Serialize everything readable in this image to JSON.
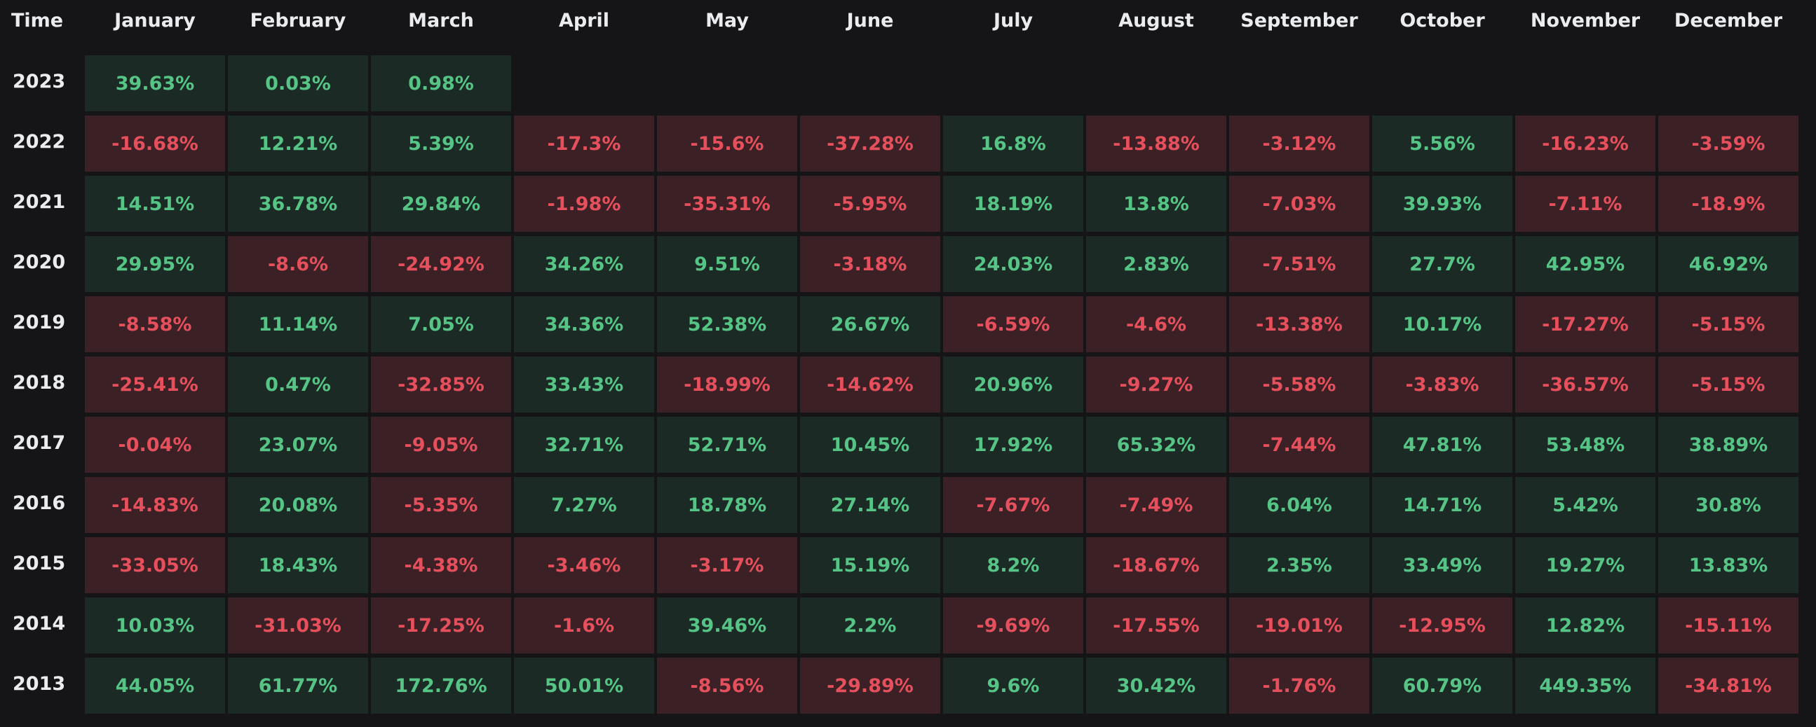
{
  "table": {
    "columns": [
      "Time",
      "January",
      "February",
      "March",
      "April",
      "May",
      "June",
      "July",
      "August",
      "September",
      "October",
      "November",
      "December"
    ],
    "rows": [
      {
        "year": "2023",
        "cells": [
          "39.63%",
          "0.03%",
          "0.98%"
        ]
      },
      {
        "year": "2022",
        "cells": [
          "-16.68%",
          "12.21%",
          "5.39%",
          "-17.3%",
          "-15.6%",
          "-37.28%",
          "16.8%",
          "-13.88%",
          "-3.12%",
          "5.56%",
          "-16.23%",
          "-3.59%"
        ]
      },
      {
        "year": "2021",
        "cells": [
          "14.51%",
          "36.78%",
          "29.84%",
          "-1.98%",
          "-35.31%",
          "-5.95%",
          "18.19%",
          "13.8%",
          "-7.03%",
          "39.93%",
          "-7.11%",
          "-18.9%"
        ]
      },
      {
        "year": "2020",
        "cells": [
          "29.95%",
          "-8.6%",
          "-24.92%",
          "34.26%",
          "9.51%",
          "-3.18%",
          "24.03%",
          "2.83%",
          "-7.51%",
          "27.7%",
          "42.95%",
          "46.92%"
        ]
      },
      {
        "year": "2019",
        "cells": [
          "-8.58%",
          "11.14%",
          "7.05%",
          "34.36%",
          "52.38%",
          "26.67%",
          "-6.59%",
          "-4.6%",
          "-13.38%",
          "10.17%",
          "-17.27%",
          "-5.15%"
        ]
      },
      {
        "year": "2018",
        "cells": [
          "-25.41%",
          "0.47%",
          "-32.85%",
          "33.43%",
          "-18.99%",
          "-14.62%",
          "20.96%",
          "-9.27%",
          "-5.58%",
          "-3.83%",
          "-36.57%",
          "-5.15%"
        ]
      },
      {
        "year": "2017",
        "cells": [
          "-0.04%",
          "23.07%",
          "-9.05%",
          "32.71%",
          "52.71%",
          "10.45%",
          "17.92%",
          "65.32%",
          "-7.44%",
          "47.81%",
          "53.48%",
          "38.89%"
        ]
      },
      {
        "year": "2016",
        "cells": [
          "-14.83%",
          "20.08%",
          "-5.35%",
          "7.27%",
          "18.78%",
          "27.14%",
          "-7.67%",
          "-7.49%",
          "6.04%",
          "14.71%",
          "5.42%",
          "30.8%"
        ]
      },
      {
        "year": "2015",
        "cells": [
          "-33.05%",
          "18.43%",
          "-4.38%",
          "-3.46%",
          "-3.17%",
          "15.19%",
          "8.2%",
          "-18.67%",
          "2.35%",
          "33.49%",
          "19.27%",
          "13.83%"
        ]
      },
      {
        "year": "2014",
        "cells": [
          "10.03%",
          "-31.03%",
          "-17.25%",
          "-1.6%",
          "39.46%",
          "2.2%",
          "-9.69%",
          "-17.55%",
          "-19.01%",
          "-12.95%",
          "12.82%",
          "-15.11%"
        ]
      },
      {
        "year": "2013",
        "cells": [
          "44.05%",
          "61.77%",
          "172.76%",
          "50.01%",
          "-8.56%",
          "-29.89%",
          "9.6%",
          "30.42%",
          "-1.76%",
          "60.79%",
          "449.35%",
          "-34.81%"
        ]
      }
    ]
  }
}
